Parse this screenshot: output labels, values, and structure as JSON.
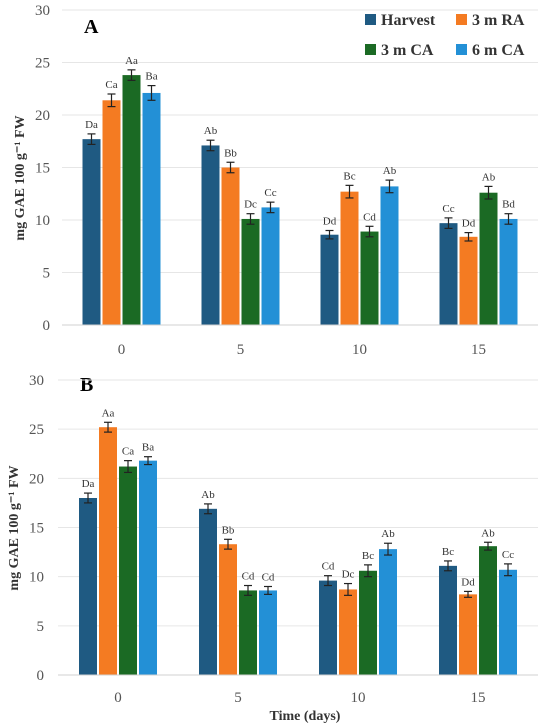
{
  "colors": {
    "Harvest": "#1f5a82",
    "3 m RA": "#f47b22",
    "3 m CA": "#1b6a24",
    "6 m CA": "#2390d6"
  },
  "chart_data": [
    {
      "type": "bar",
      "panel_label": "A",
      "ylabel": "mg GAE 100 g⁻¹ FW",
      "xlabel": "",
      "ylim": [
        0,
        30
      ],
      "yticks": [
        0,
        5,
        10,
        15,
        20,
        25,
        30
      ],
      "categories": [
        "0",
        "5",
        "10",
        "15"
      ],
      "legend": {
        "placement": "top-right",
        "entries": [
          "Harvest",
          "3 m RA",
          "3 m CA",
          "6 m CA"
        ]
      },
      "series": [
        {
          "name": "Harvest",
          "values": [
            17.7,
            17.1,
            8.6,
            9.7
          ],
          "errors": [
            0.5,
            0.5,
            0.4,
            0.5
          ],
          "labels": [
            "Da",
            "Ab",
            "Dd",
            "Cc"
          ]
        },
        {
          "name": "3 m RA",
          "values": [
            21.4,
            15.0,
            12.7,
            8.4
          ],
          "errors": [
            0.6,
            0.5,
            0.6,
            0.4
          ],
          "labels": [
            "Ca",
            "Bb",
            "Bc",
            "Dd"
          ]
        },
        {
          "name": "3 m CA",
          "values": [
            23.8,
            10.1,
            8.9,
            12.6
          ],
          "errors": [
            0.5,
            0.5,
            0.5,
            0.6
          ],
          "labels": [
            "Aa",
            "Dc",
            "Cd",
            "Ab"
          ]
        },
        {
          "name": "6 m CA",
          "values": [
            22.1,
            11.2,
            13.2,
            10.1
          ],
          "errors": [
            0.7,
            0.5,
            0.6,
            0.5
          ],
          "labels": [
            "Ba",
            "Cc",
            "Ab",
            "Bd"
          ]
        }
      ]
    },
    {
      "type": "bar",
      "panel_label": "B",
      "ylabel": "mg GAE 100 g⁻¹ FW",
      "xlabel": "Time (days)",
      "ylim": [
        0,
        30
      ],
      "yticks": [
        0,
        5,
        10,
        15,
        20,
        25,
        30
      ],
      "categories": [
        "0",
        "5",
        "10",
        "15"
      ],
      "series": [
        {
          "name": "Harvest",
          "values": [
            18.0,
            16.9,
            9.6,
            11.1
          ],
          "errors": [
            0.5,
            0.5,
            0.5,
            0.5
          ],
          "labels": [
            "Da",
            "Ab",
            "Cd",
            "Bc"
          ]
        },
        {
          "name": "3 m RA",
          "values": [
            25.2,
            13.3,
            8.7,
            8.2
          ],
          "errors": [
            0.5,
            0.5,
            0.6,
            0.3
          ],
          "labels": [
            "Aa",
            "Bb",
            "Dc",
            "Dd"
          ]
        },
        {
          "name": "3 m CA",
          "values": [
            21.2,
            8.6,
            10.6,
            13.1
          ],
          "errors": [
            0.6,
            0.5,
            0.6,
            0.4
          ],
          "labels": [
            "Ca",
            "Cd",
            "Bc",
            "Ab"
          ]
        },
        {
          "name": "6 m CA",
          "values": [
            21.8,
            8.6,
            12.8,
            10.7
          ],
          "errors": [
            0.4,
            0.4,
            0.6,
            0.6
          ],
          "labels": [
            "Ba",
            "Cd",
            "Ab",
            "Cc"
          ]
        }
      ]
    }
  ]
}
